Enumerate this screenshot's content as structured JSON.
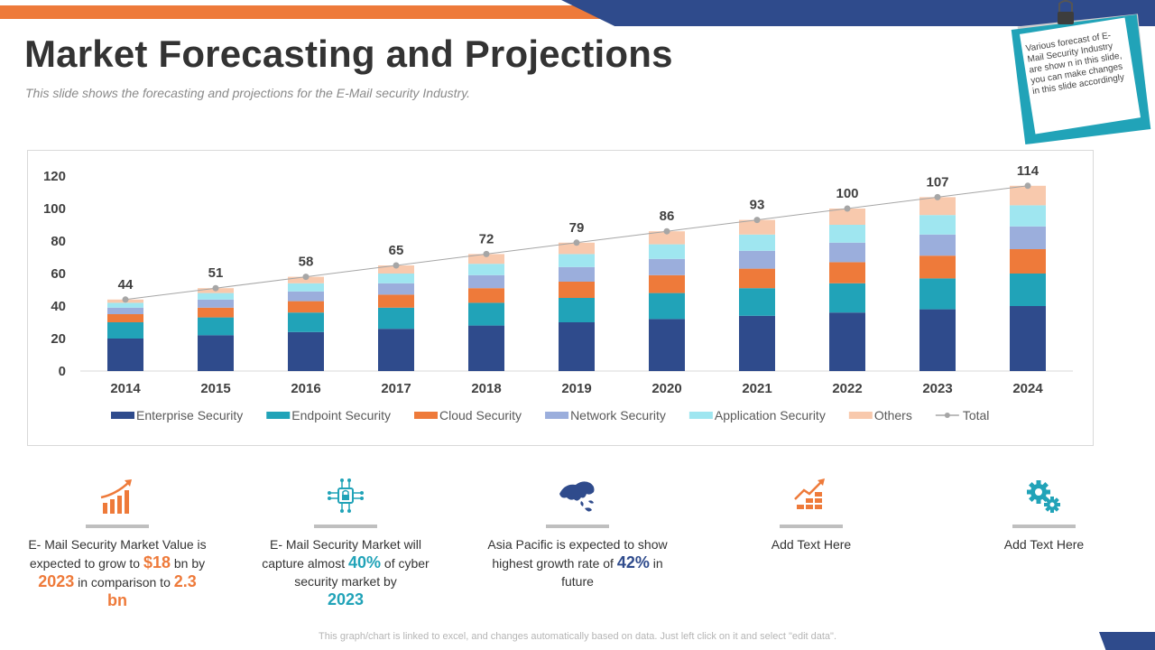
{
  "header": {
    "title": "Market Forecasting and Projections",
    "subtitle": "This slide shows the forecasting and projections for the E-Mail security Industry."
  },
  "note": {
    "text": "Various forecast of E-Mail Security Industry are show n in this slide, you can make changes in this slide accordingly"
  },
  "colors": {
    "orange": "#ee7a3a",
    "navy": "#2f4b8c",
    "teal": "#21a3b8"
  },
  "chart_data": {
    "type": "bar",
    "stacked": true,
    "categories": [
      "2014",
      "2015",
      "2016",
      "2017",
      "2018",
      "2019",
      "2020",
      "2021",
      "2022",
      "2023",
      "2024"
    ],
    "series": [
      {
        "name": "Enterprise Security",
        "color": "#2f4b8c",
        "values": [
          20,
          22,
          24,
          26,
          28,
          30,
          32,
          34,
          36,
          38,
          40
        ]
      },
      {
        "name": "Endpoint Security",
        "color": "#21a3b8",
        "values": [
          10,
          11,
          12,
          13,
          14,
          15,
          16,
          17,
          18,
          19,
          20
        ]
      },
      {
        "name": "Cloud Security",
        "color": "#ee7a3a",
        "values": [
          5,
          6,
          7,
          8,
          9,
          10,
          11,
          12,
          13,
          14,
          15
        ]
      },
      {
        "name": "Network Security",
        "color": "#9baedc",
        "values": [
          4,
          5,
          6,
          7,
          8,
          9,
          10,
          11,
          12,
          13,
          14
        ]
      },
      {
        "name": "Application Security",
        "color": "#9fe6f0",
        "values": [
          3,
          4,
          5,
          6,
          7,
          8,
          9,
          10,
          11,
          12,
          13
        ]
      },
      {
        "name": "Others",
        "color": "#f8c9ad",
        "values": [
          2,
          3,
          4,
          5,
          6,
          7,
          8,
          9,
          10,
          11,
          12
        ]
      }
    ],
    "line": {
      "name": "Total",
      "color": "#a6a6a6",
      "values": [
        44,
        51,
        58,
        65,
        72,
        79,
        86,
        93,
        100,
        107,
        114
      ]
    },
    "yticks": [
      0,
      20,
      40,
      60,
      80,
      100,
      120
    ],
    "ylim": [
      0,
      120
    ],
    "title": "",
    "xlabel": "",
    "ylabel": "",
    "grid": false,
    "legend": "bottom"
  },
  "info": [
    {
      "pre": "E- Mail Security Market Value  is expected to grow to ",
      "h1": "$18",
      "mid": " bn by ",
      "h2": "2023",
      "mid2": " in comparison to ",
      "h3": "2.3 bn",
      "post": ""
    },
    {
      "pre": "E- Mail Security Market will capture almost ",
      "h1": "40%",
      "mid": " of cyber security market by ",
      "h2": "2023",
      "post": ""
    },
    {
      "pre": "Asia Pacific is expected to show highest growth rate of ",
      "h1": "42%",
      "post": " in future"
    },
    {
      "text": "Add Text Here"
    },
    {
      "text": "Add Text Here"
    }
  ],
  "footer": {
    "note": "This graph/chart is linked to excel, and changes automatically based on data. Just left click on it and select \"edit data\"."
  }
}
